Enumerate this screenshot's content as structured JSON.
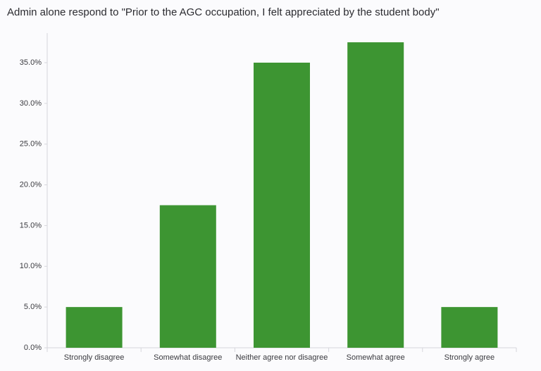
{
  "chart_data": {
    "type": "bar",
    "title": "Admin alone respond to \"Prior to the AGC occupation, I felt appreciated by the student body\"",
    "categories": [
      "Strongly disagree",
      "Somewhat disagree",
      "Neither agree nor disagree",
      "Somewhat agree",
      "Strongly agree"
    ],
    "values": [
      5,
      17.5,
      35,
      37.5,
      5
    ],
    "color": "#3d9532",
    "ylim": [
      0,
      38.5
    ],
    "yticks": [
      {
        "value": 0,
        "label": "0.0%"
      },
      {
        "value": 5,
        "label": "5.0%"
      },
      {
        "value": 10,
        "label": "10.0%"
      },
      {
        "value": 15,
        "label": "15.0%"
      },
      {
        "value": 20,
        "label": "20.0%"
      },
      {
        "value": 25,
        "label": "25.0%"
      },
      {
        "value": 30,
        "label": "30.0%"
      },
      {
        "value": 35,
        "label": "35.0%"
      }
    ],
    "grid": false
  }
}
